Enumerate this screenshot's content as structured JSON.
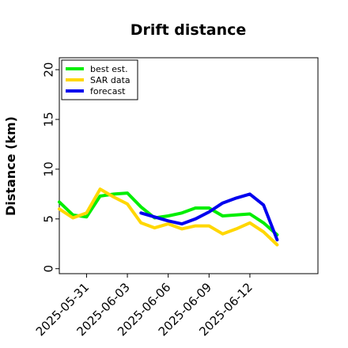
{
  "chart_data": {
    "type": "line",
    "title": "Drift distance",
    "xlabel": "",
    "ylabel": "Distance (km)",
    "ylim": [
      -0.5,
      21.2
    ],
    "yticks": [
      0,
      5,
      10,
      15,
      20
    ],
    "xlim": [
      "2025-05-29",
      "2025-06-17"
    ],
    "xtick_labels": [
      "2025-05-31",
      "2025-06-03",
      "2025-06-06",
      "2025-06-09",
      "2025-06-12"
    ],
    "grid": false,
    "legend_position": "top-left",
    "series": [
      {
        "name": "best est.",
        "color": "#00ee00",
        "x": [
          "2025-05-29",
          "2025-05-30",
          "2025-05-31",
          "2025-06-01",
          "2025-06-02",
          "2025-06-03",
          "2025-06-04",
          "2025-06-05",
          "2025-06-06",
          "2025-06-07",
          "2025-06-08",
          "2025-06-09",
          "2025-06-10",
          "2025-06-11",
          "2025-06-12",
          "2025-06-13",
          "2025-06-14",
          "2025-06-15",
          "2025-06-16"
        ],
        "y": [
          6.7,
          5.4,
          5.2,
          7.3,
          7.5,
          7.6,
          6.2,
          5.1,
          5.3,
          5.6,
          6.1,
          6.1,
          5.3,
          5.4,
          5.5,
          4.6,
          3.4,
          null,
          null
        ]
      },
      {
        "name": "SAR data",
        "color": "#ffd700",
        "x": [
          "2025-05-29",
          "2025-05-30",
          "2025-05-31",
          "2025-06-01",
          "2025-06-02",
          "2025-06-03",
          "2025-06-04",
          "2025-06-05",
          "2025-06-06",
          "2025-06-07",
          "2025-06-08",
          "2025-06-09",
          "2025-06-10",
          "2025-06-11",
          "2025-06-12",
          "2025-06-13",
          "2025-06-14",
          "2025-06-15",
          "2025-06-16"
        ],
        "y": [
          6.0,
          5.1,
          5.6,
          8.0,
          7.2,
          6.5,
          4.6,
          4.1,
          4.5,
          4.0,
          4.3,
          4.3,
          3.5,
          4.0,
          4.6,
          3.7,
          2.4,
          null,
          null
        ]
      },
      {
        "name": "forecast",
        "color": "#0000ee",
        "x": [
          "2025-06-04",
          "2025-06-05",
          "2025-06-06",
          "2025-06-07",
          "2025-06-08",
          "2025-06-09",
          "2025-06-10",
          "2025-06-11",
          "2025-06-12",
          "2025-06-13",
          "2025-06-14"
        ],
        "y": [
          5.6,
          5.2,
          4.8,
          4.5,
          5.0,
          5.7,
          6.6,
          7.1,
          7.5,
          6.4,
          2.9
        ]
      }
    ]
  }
}
